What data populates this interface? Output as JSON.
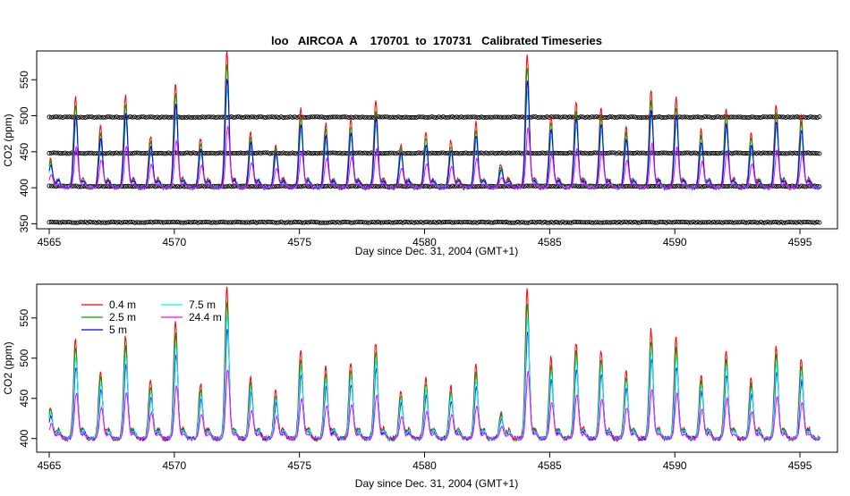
{
  "title": "loo   AIRCOA  A    170701  to  170731   Calibrated Timeseries",
  "chart_data": [
    {
      "type": "line",
      "panel": "top",
      "xlabel": "Day since Dec. 31, 2004 (GMT+1)",
      "ylabel": "CO2 (ppm)",
      "xlim": [
        4564.5,
        4596.5
      ],
      "ylim": [
        343,
        590
      ],
      "x_ticks": [
        4565,
        4570,
        4575,
        4580,
        4585,
        4590,
        4595
      ],
      "y_ticks": [
        350,
        400,
        450,
        500,
        550
      ],
      "x_range": [
        4565,
        4595.8
      ],
      "reference_levels": [
        {
          "name": "ref-500",
          "value": 498
        },
        {
          "name": "ref-450",
          "value": 448
        },
        {
          "name": "ref-402",
          "value": 402
        },
        {
          "name": "ref-352",
          "value": 352
        }
      ],
      "series": [
        {
          "color": "#ff0000"
        },
        {
          "color": "#00a000"
        },
        {
          "color": "#00ffff"
        },
        {
          "color": "#0000ff"
        },
        {
          "color": "#ff00ff"
        }
      ]
    },
    {
      "type": "line",
      "panel": "bottom",
      "xlabel": "Day since Dec. 31, 2004 (GMT+1)",
      "ylabel": "CO2 (ppm)",
      "xlim": [
        4564.5,
        4596.5
      ],
      "ylim": [
        383,
        592
      ],
      "x_ticks": [
        4565,
        4570,
        4575,
        4580,
        4585,
        4590,
        4595
      ],
      "y_ticks": [
        400,
        450,
        500,
        550
      ],
      "x_range": [
        4565,
        4595.8
      ],
      "legend": {
        "position": "top-left"
      },
      "series": [
        {
          "name": "0.4 m",
          "color": "#ff0000"
        },
        {
          "name": "2.5 m",
          "color": "#00a000"
        },
        {
          "name": "5 m",
          "color": "#0000ff"
        },
        {
          "name": "7.5 m",
          "color": "#00ffff"
        },
        {
          "name": "24.4 m",
          "color": "#ff00ff"
        }
      ]
    }
  ],
  "daily_peaks_ppm": [
    {
      "day": 4565.05,
      "peak": 440
    },
    {
      "day": 4566.05,
      "peak": 525
    },
    {
      "day": 4567.05,
      "peak": 485
    },
    {
      "day": 4568.05,
      "peak": 528
    },
    {
      "day": 4569.05,
      "peak": 472
    },
    {
      "day": 4570.05,
      "peak": 545
    },
    {
      "day": 4571.05,
      "peak": 468
    },
    {
      "day": 4572.1,
      "peak": 590
    },
    {
      "day": 4573.05,
      "peak": 478
    },
    {
      "day": 4574.05,
      "peak": 460
    },
    {
      "day": 4575.05,
      "peak": 510
    },
    {
      "day": 4576.05,
      "peak": 490
    },
    {
      "day": 4577.05,
      "peak": 495
    },
    {
      "day": 4578.05,
      "peak": 520
    },
    {
      "day": 4579.05,
      "peak": 460
    },
    {
      "day": 4580.05,
      "peak": 475
    },
    {
      "day": 4581.05,
      "peak": 465
    },
    {
      "day": 4582.05,
      "peak": 490
    },
    {
      "day": 4583.05,
      "peak": 432
    },
    {
      "day": 4584.1,
      "peak": 586
    },
    {
      "day": 4585.05,
      "peak": 500
    },
    {
      "day": 4586.05,
      "peak": 520
    },
    {
      "day": 4587.05,
      "peak": 510
    },
    {
      "day": 4588.05,
      "peak": 485
    },
    {
      "day": 4589.05,
      "peak": 535
    },
    {
      "day": 4590.05,
      "peak": 525
    },
    {
      "day": 4591.05,
      "peak": 480
    },
    {
      "day": 4592.05,
      "peak": 510
    },
    {
      "day": 4593.05,
      "peak": 475
    },
    {
      "day": 4594.05,
      "peak": 515
    },
    {
      "day": 4595.05,
      "peak": 500
    }
  ]
}
